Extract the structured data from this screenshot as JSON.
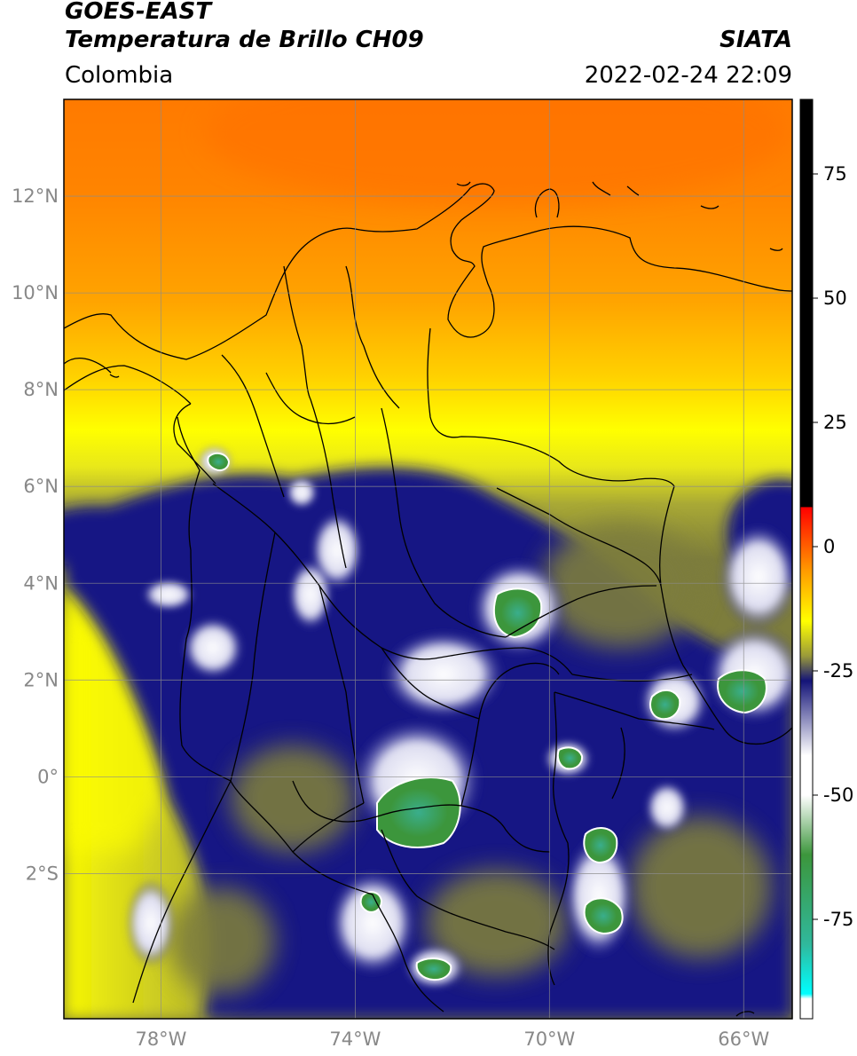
{
  "header": {
    "satellite": "GOES-EAST",
    "product": "Temperatura de Brillo CH09",
    "region": "Colombia",
    "source": "SIATA",
    "datetime": "2022-02-24 22:09"
  },
  "map": {
    "extent": {
      "lon_min": -80,
      "lon_max": -65,
      "lat_min": -5,
      "lat_max": 14
    },
    "lat_ticks": [
      {
        "value": 12,
        "label": "12°N"
      },
      {
        "value": 10,
        "label": "10°N"
      },
      {
        "value": 8,
        "label": "8°N"
      },
      {
        "value": 6,
        "label": "6°N"
      },
      {
        "value": 4,
        "label": "4°N"
      },
      {
        "value": 2,
        "label": "2°N"
      },
      {
        "value": 0,
        "label": "0°"
      },
      {
        "value": -2,
        "label": "2°S"
      }
    ],
    "lon_ticks": [
      {
        "value": -78,
        "label": "78°W"
      },
      {
        "value": -74,
        "label": "74°W"
      },
      {
        "value": -70,
        "label": "70°W"
      },
      {
        "value": -66,
        "label": "66°W"
      }
    ],
    "colors": {
      "warm_top": "#ff7f00",
      "orange": "#ffa000",
      "yellow": "#ffff00",
      "olive": "#9b9b32",
      "navy": "#141484",
      "white": "#ffffff",
      "green": "#3c963c",
      "teal": "#30b89c",
      "boundary": "#000000",
      "grid": "#8c8c8c"
    }
  },
  "colorbar": {
    "range": [
      -95,
      90
    ],
    "ticks": [
      {
        "value": 75,
        "label": "75"
      },
      {
        "value": 50,
        "label": "50"
      },
      {
        "value": 25,
        "label": "25"
      },
      {
        "value": 0,
        "label": "0"
      },
      {
        "value": -25,
        "label": "-25"
      },
      {
        "value": -50,
        "label": "-50"
      },
      {
        "value": -75,
        "label": "-75"
      }
    ],
    "stops": [
      {
        "value": 90,
        "color": "#000000"
      },
      {
        "value": 8,
        "color": "#000000"
      },
      {
        "value": 7.9,
        "color": "#ff0000"
      },
      {
        "value": -5,
        "color": "#ff9c00"
      },
      {
        "value": -15,
        "color": "#ffff00"
      },
      {
        "value": -22,
        "color": "#9a9a3a"
      },
      {
        "value": -27,
        "color": "#141478"
      },
      {
        "value": -42,
        "color": "#ffffff"
      },
      {
        "value": -50,
        "color": "#ffffff"
      },
      {
        "value": -62,
        "color": "#3c963c"
      },
      {
        "value": -80,
        "color": "#30b89c"
      },
      {
        "value": -90,
        "color": "#00ffff"
      },
      {
        "value": -91,
        "color": "#ffffff"
      },
      {
        "value": -95,
        "color": "#ffffff"
      }
    ]
  }
}
